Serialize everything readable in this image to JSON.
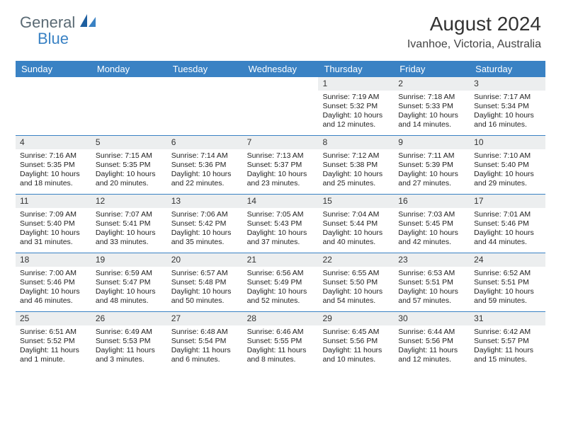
{
  "colors": {
    "header_bg": "#3a82c4",
    "daynum_bg": "#eceeef",
    "week_border": "#3a82c4",
    "logo_gray": "#5a6a74",
    "logo_blue": "#3a82c4"
  },
  "logo": {
    "part1": "General",
    "part2": "Blue"
  },
  "title": "August 2024",
  "location": "Ivanhoe, Victoria, Australia",
  "day_headers": [
    "Sunday",
    "Monday",
    "Tuesday",
    "Wednesday",
    "Thursday",
    "Friday",
    "Saturday"
  ],
  "weeks": [
    [
      {
        "n": "",
        "sr": "",
        "ss": "",
        "dl": ""
      },
      {
        "n": "",
        "sr": "",
        "ss": "",
        "dl": ""
      },
      {
        "n": "",
        "sr": "",
        "ss": "",
        "dl": ""
      },
      {
        "n": "",
        "sr": "",
        "ss": "",
        "dl": ""
      },
      {
        "n": "1",
        "sr": "Sunrise: 7:19 AM",
        "ss": "Sunset: 5:32 PM",
        "dl": "Daylight: 10 hours and 12 minutes."
      },
      {
        "n": "2",
        "sr": "Sunrise: 7:18 AM",
        "ss": "Sunset: 5:33 PM",
        "dl": "Daylight: 10 hours and 14 minutes."
      },
      {
        "n": "3",
        "sr": "Sunrise: 7:17 AM",
        "ss": "Sunset: 5:34 PM",
        "dl": "Daylight: 10 hours and 16 minutes."
      }
    ],
    [
      {
        "n": "4",
        "sr": "Sunrise: 7:16 AM",
        "ss": "Sunset: 5:35 PM",
        "dl": "Daylight: 10 hours and 18 minutes."
      },
      {
        "n": "5",
        "sr": "Sunrise: 7:15 AM",
        "ss": "Sunset: 5:35 PM",
        "dl": "Daylight: 10 hours and 20 minutes."
      },
      {
        "n": "6",
        "sr": "Sunrise: 7:14 AM",
        "ss": "Sunset: 5:36 PM",
        "dl": "Daylight: 10 hours and 22 minutes."
      },
      {
        "n": "7",
        "sr": "Sunrise: 7:13 AM",
        "ss": "Sunset: 5:37 PM",
        "dl": "Daylight: 10 hours and 23 minutes."
      },
      {
        "n": "8",
        "sr": "Sunrise: 7:12 AM",
        "ss": "Sunset: 5:38 PM",
        "dl": "Daylight: 10 hours and 25 minutes."
      },
      {
        "n": "9",
        "sr": "Sunrise: 7:11 AM",
        "ss": "Sunset: 5:39 PM",
        "dl": "Daylight: 10 hours and 27 minutes."
      },
      {
        "n": "10",
        "sr": "Sunrise: 7:10 AM",
        "ss": "Sunset: 5:40 PM",
        "dl": "Daylight: 10 hours and 29 minutes."
      }
    ],
    [
      {
        "n": "11",
        "sr": "Sunrise: 7:09 AM",
        "ss": "Sunset: 5:40 PM",
        "dl": "Daylight: 10 hours and 31 minutes."
      },
      {
        "n": "12",
        "sr": "Sunrise: 7:07 AM",
        "ss": "Sunset: 5:41 PM",
        "dl": "Daylight: 10 hours and 33 minutes."
      },
      {
        "n": "13",
        "sr": "Sunrise: 7:06 AM",
        "ss": "Sunset: 5:42 PM",
        "dl": "Daylight: 10 hours and 35 minutes."
      },
      {
        "n": "14",
        "sr": "Sunrise: 7:05 AM",
        "ss": "Sunset: 5:43 PM",
        "dl": "Daylight: 10 hours and 37 minutes."
      },
      {
        "n": "15",
        "sr": "Sunrise: 7:04 AM",
        "ss": "Sunset: 5:44 PM",
        "dl": "Daylight: 10 hours and 40 minutes."
      },
      {
        "n": "16",
        "sr": "Sunrise: 7:03 AM",
        "ss": "Sunset: 5:45 PM",
        "dl": "Daylight: 10 hours and 42 minutes."
      },
      {
        "n": "17",
        "sr": "Sunrise: 7:01 AM",
        "ss": "Sunset: 5:46 PM",
        "dl": "Daylight: 10 hours and 44 minutes."
      }
    ],
    [
      {
        "n": "18",
        "sr": "Sunrise: 7:00 AM",
        "ss": "Sunset: 5:46 PM",
        "dl": "Daylight: 10 hours and 46 minutes."
      },
      {
        "n": "19",
        "sr": "Sunrise: 6:59 AM",
        "ss": "Sunset: 5:47 PM",
        "dl": "Daylight: 10 hours and 48 minutes."
      },
      {
        "n": "20",
        "sr": "Sunrise: 6:57 AM",
        "ss": "Sunset: 5:48 PM",
        "dl": "Daylight: 10 hours and 50 minutes."
      },
      {
        "n": "21",
        "sr": "Sunrise: 6:56 AM",
        "ss": "Sunset: 5:49 PM",
        "dl": "Daylight: 10 hours and 52 minutes."
      },
      {
        "n": "22",
        "sr": "Sunrise: 6:55 AM",
        "ss": "Sunset: 5:50 PM",
        "dl": "Daylight: 10 hours and 54 minutes."
      },
      {
        "n": "23",
        "sr": "Sunrise: 6:53 AM",
        "ss": "Sunset: 5:51 PM",
        "dl": "Daylight: 10 hours and 57 minutes."
      },
      {
        "n": "24",
        "sr": "Sunrise: 6:52 AM",
        "ss": "Sunset: 5:51 PM",
        "dl": "Daylight: 10 hours and 59 minutes."
      }
    ],
    [
      {
        "n": "25",
        "sr": "Sunrise: 6:51 AM",
        "ss": "Sunset: 5:52 PM",
        "dl": "Daylight: 11 hours and 1 minute."
      },
      {
        "n": "26",
        "sr": "Sunrise: 6:49 AM",
        "ss": "Sunset: 5:53 PM",
        "dl": "Daylight: 11 hours and 3 minutes."
      },
      {
        "n": "27",
        "sr": "Sunrise: 6:48 AM",
        "ss": "Sunset: 5:54 PM",
        "dl": "Daylight: 11 hours and 6 minutes."
      },
      {
        "n": "28",
        "sr": "Sunrise: 6:46 AM",
        "ss": "Sunset: 5:55 PM",
        "dl": "Daylight: 11 hours and 8 minutes."
      },
      {
        "n": "29",
        "sr": "Sunrise: 6:45 AM",
        "ss": "Sunset: 5:56 PM",
        "dl": "Daylight: 11 hours and 10 minutes."
      },
      {
        "n": "30",
        "sr": "Sunrise: 6:44 AM",
        "ss": "Sunset: 5:56 PM",
        "dl": "Daylight: 11 hours and 12 minutes."
      },
      {
        "n": "31",
        "sr": "Sunrise: 6:42 AM",
        "ss": "Sunset: 5:57 PM",
        "dl": "Daylight: 11 hours and 15 minutes."
      }
    ]
  ]
}
